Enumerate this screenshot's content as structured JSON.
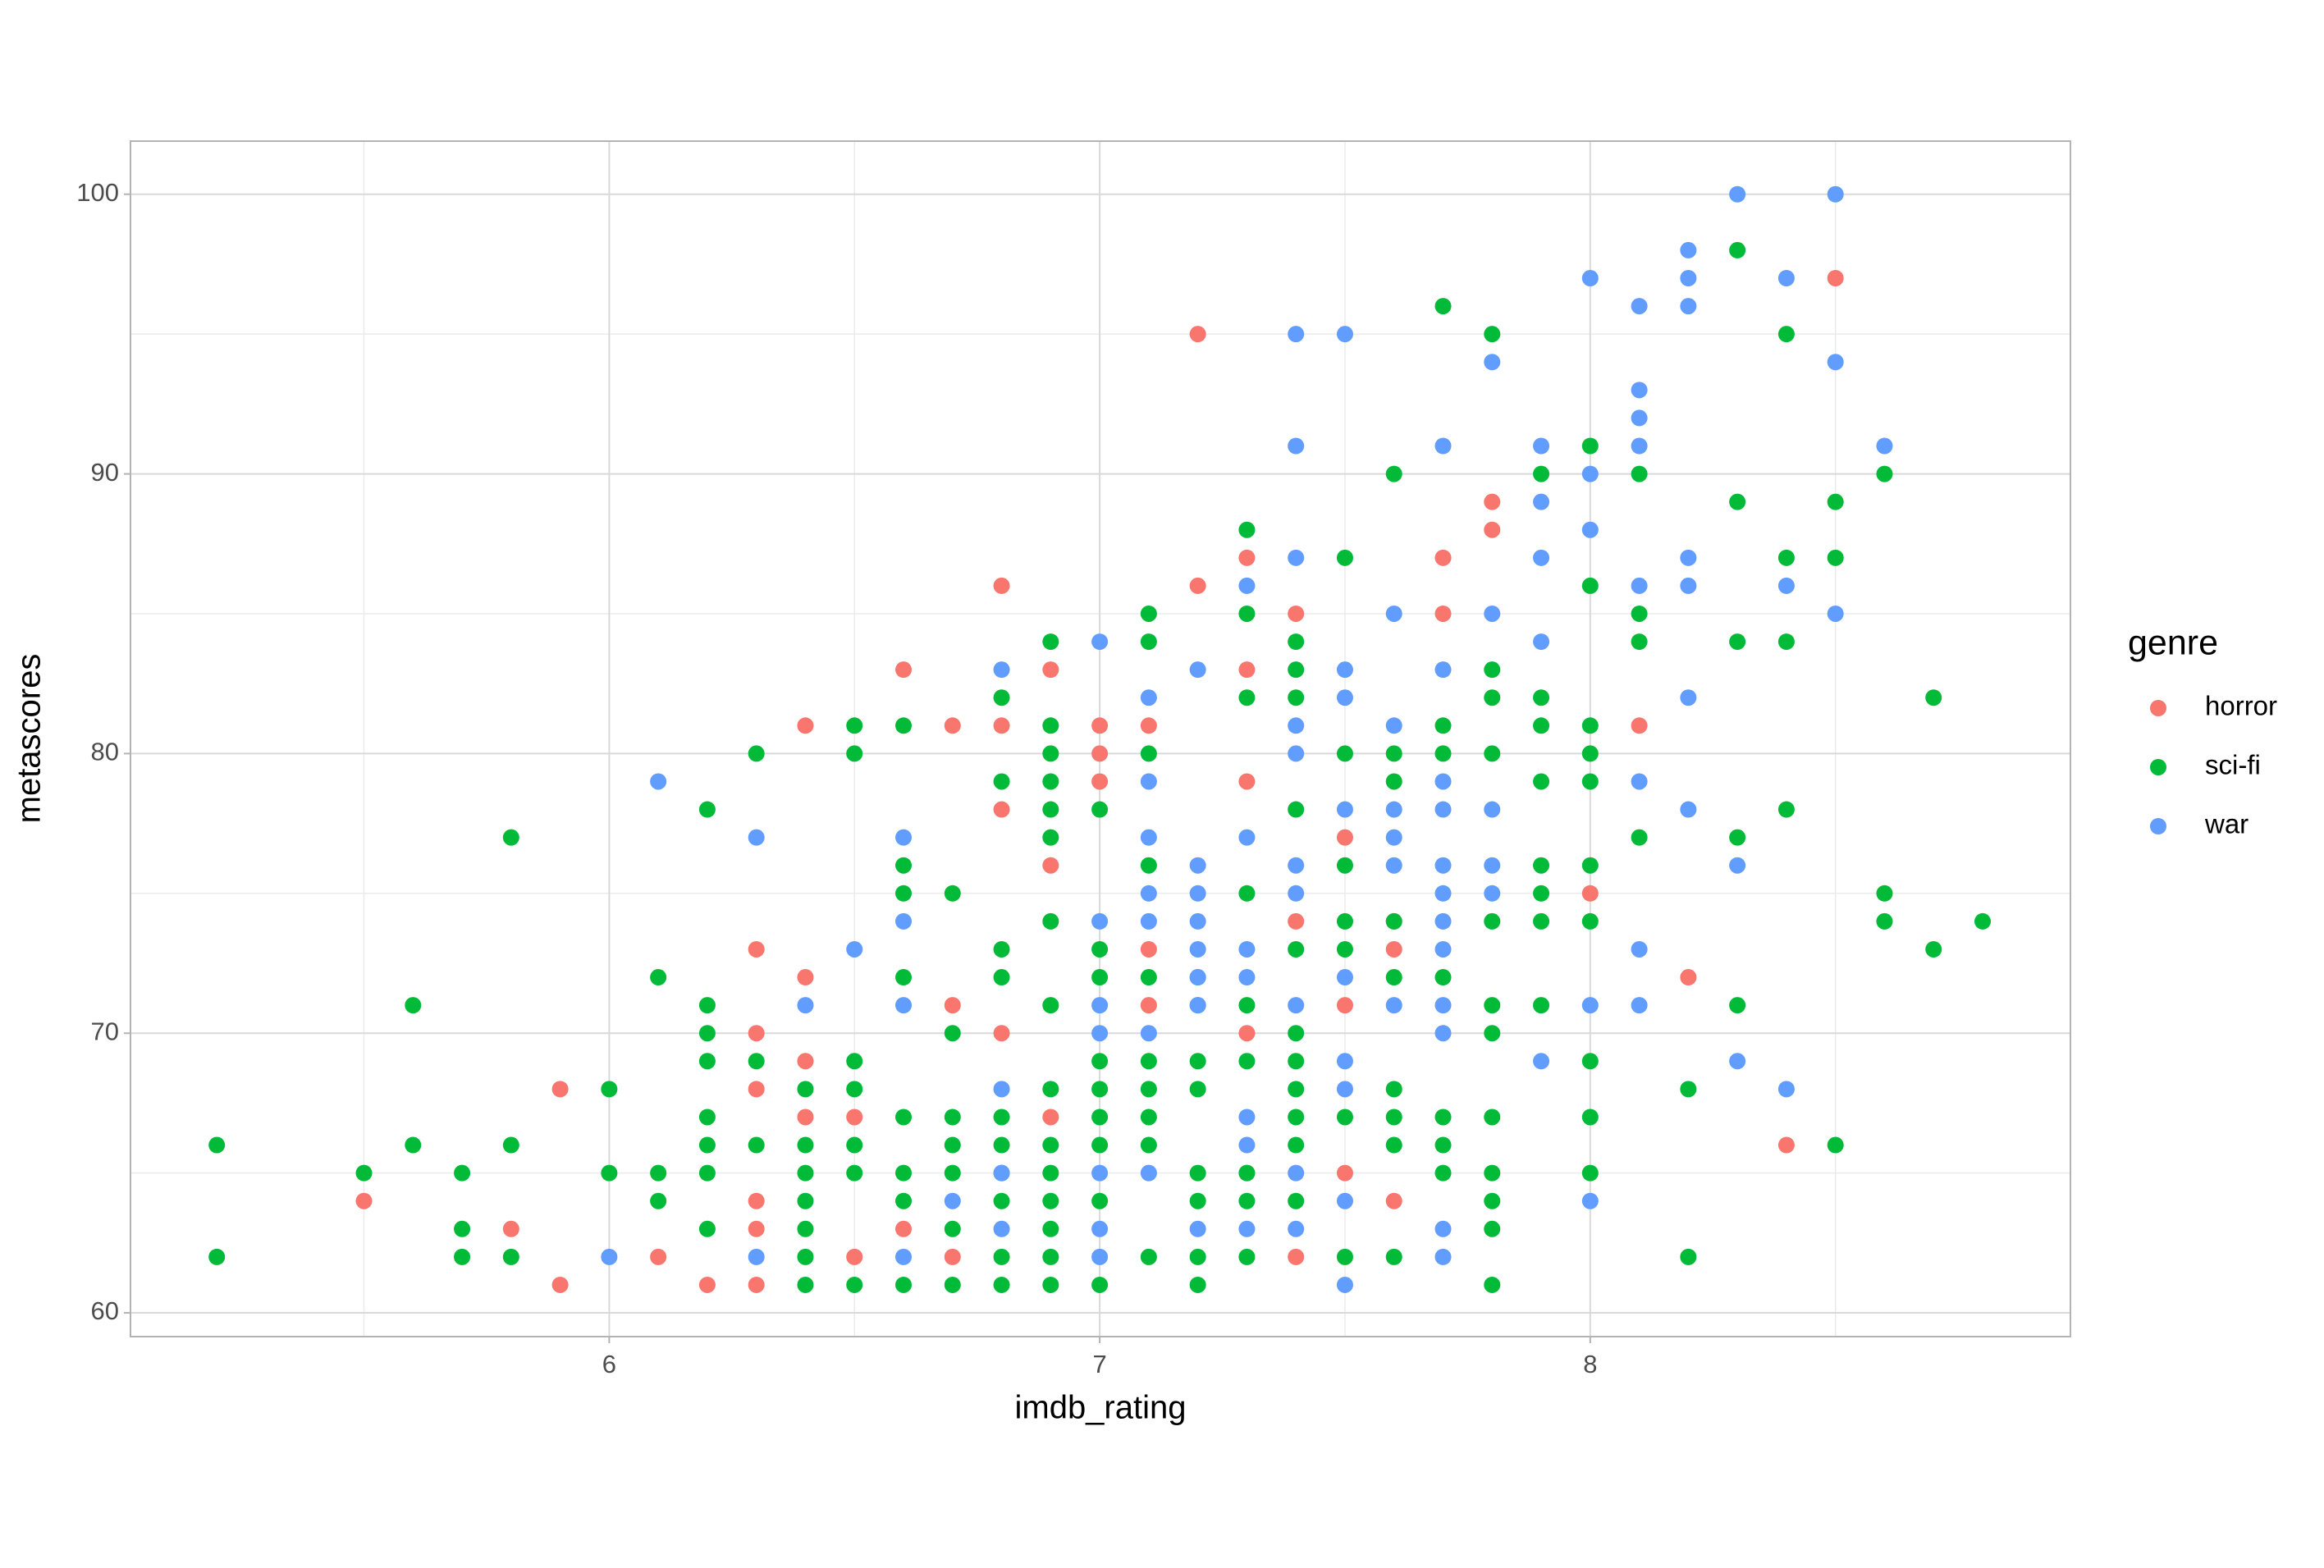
{
  "chart_data": {
    "type": "scatter",
    "x_label": "imdb_rating",
    "y_label": "metascores",
    "legend_title": "genre",
    "xlim": [
      5.024,
      8.979
    ],
    "ylim": [
      59.15,
      101.9
    ],
    "xticks": [
      6,
      7,
      8
    ],
    "yticks": [
      60,
      70,
      80,
      90,
      100
    ],
    "grid": true,
    "legend": "right",
    "series": [
      {
        "name": "horror",
        "color": "#F8766D",
        "x": [
          5.5,
          5.8,
          5.9,
          5.9,
          6.1,
          6.2,
          6.3,
          6.3,
          6.3,
          6.3,
          6.3,
          6.3,
          6.4,
          6.4,
          6.4,
          6.4,
          6.5,
          6.5,
          6.6,
          6.6,
          6.7,
          6.7,
          6.7,
          6.8,
          6.8,
          6.8,
          6.8,
          6.9,
          6.9,
          6.9,
          7,
          7,
          7,
          7.1,
          7.1,
          7.1,
          7.2,
          7.2,
          7.3,
          7.3,
          7.3,
          7.3,
          7.3,
          7.4,
          7.4,
          7.4,
          7.5,
          7.5,
          7.5,
          7.6,
          7.6,
          7.6,
          7.7,
          7.7,
          7.8,
          7.8,
          8,
          8.1,
          8.2,
          8.4,
          8.5
        ],
        "values": [
          64,
          63,
          68,
          61,
          62,
          61,
          73,
          70,
          68,
          64,
          63,
          61,
          81,
          72,
          69,
          67,
          67,
          62,
          83,
          63,
          81,
          71,
          62,
          86,
          81,
          78,
          70,
          83,
          76,
          67,
          81,
          80,
          79,
          81,
          73,
          71,
          95,
          86,
          87,
          83,
          79,
          70,
          65,
          85,
          74,
          62,
          77,
          71,
          65,
          74,
          73,
          64,
          87,
          85,
          89,
          88,
          75,
          81,
          72,
          66,
          97
        ]
      },
      {
        "name": "sci-fi",
        "color": "#00BA38",
        "x": [
          5.2,
          5.2,
          5.5,
          5.6,
          5.6,
          5.7,
          5.7,
          5.7,
          5.8,
          5.8,
          5.8,
          6,
          6,
          6.1,
          6.1,
          6.1,
          6.2,
          6.2,
          6.2,
          6.2,
          6.2,
          6.2,
          6.2,
          6.2,
          6.3,
          6.3,
          6.3,
          6.4,
          6.4,
          6.4,
          6.4,
          6.4,
          6.4,
          6.4,
          6.5,
          6.5,
          6.5,
          6.5,
          6.5,
          6.5,
          6.5,
          6.6,
          6.6,
          6.6,
          6.6,
          6.6,
          6.6,
          6.6,
          6.6,
          6.7,
          6.7,
          6.7,
          6.7,
          6.7,
          6.7,
          6.7,
          6.8,
          6.8,
          6.8,
          6.8,
          6.8,
          6.8,
          6.8,
          6.8,
          6.8,
          6.8,
          6.9,
          6.9,
          6.9,
          6.9,
          6.9,
          6.9,
          6.9,
          6.9,
          6.9,
          6.9,
          6.9,
          6.9,
          6.9,
          6.9,
          6.9,
          7,
          7,
          7,
          7,
          7,
          7,
          7,
          7,
          7,
          7.1,
          7.1,
          7.1,
          7.1,
          7.1,
          7.1,
          7.1,
          7.1,
          7.1,
          7.1,
          7.2,
          7.2,
          7.2,
          7.2,
          7.2,
          7.2,
          7.2,
          7.2,
          7.3,
          7.3,
          7.3,
          7.3,
          7.3,
          7.3,
          7.3,
          7.3,
          7.3,
          7.4,
          7.4,
          7.4,
          7.4,
          7.4,
          7.4,
          7.4,
          7.4,
          7.4,
          7.4,
          7.4,
          7.5,
          7.5,
          7.5,
          7.5,
          7.5,
          7.5,
          7.5,
          7.6,
          7.6,
          7.6,
          7.6,
          7.6,
          7.6,
          7.6,
          7.6,
          7.6,
          7.7,
          7.7,
          7.7,
          7.7,
          7.7,
          7.7,
          7.7,
          7.8,
          7.8,
          7.8,
          7.8,
          7.8,
          7.8,
          7.8,
          7.8,
          7.8,
          7.8,
          7.8,
          7.8,
          7.9,
          7.9,
          7.9,
          7.9,
          7.9,
          7.9,
          7.9,
          7.9,
          8,
          8,
          8,
          8,
          8,
          8,
          8,
          8,
          8,
          8,
          8.1,
          8.1,
          8.1,
          8.1,
          8.2,
          8.2,
          8.3,
          8.3,
          8.3,
          8.3,
          8.3,
          8.4,
          8.4,
          8.4,
          8.4,
          8.5,
          8.5,
          8.5,
          8.6,
          8.6,
          8.6,
          8.7,
          8.7,
          8.8
        ],
        "values": [
          66,
          62,
          65,
          71,
          66,
          65,
          63,
          62,
          77,
          66,
          62,
          68,
          65,
          72,
          65,
          64,
          78,
          71,
          70,
          69,
          67,
          66,
          65,
          63,
          80,
          69,
          66,
          68,
          66,
          65,
          64,
          63,
          62,
          61,
          81,
          80,
          69,
          68,
          66,
          65,
          61,
          81,
          76,
          75,
          72,
          67,
          65,
          64,
          61,
          75,
          70,
          67,
          66,
          65,
          63,
          61,
          82,
          79,
          73,
          72,
          67,
          66,
          65,
          64,
          62,
          61,
          84,
          81,
          80,
          79,
          78,
          77,
          74,
          71,
          68,
          66,
          65,
          64,
          63,
          62,
          61,
          78,
          73,
          72,
          69,
          68,
          67,
          66,
          64,
          61,
          85,
          84,
          80,
          76,
          72,
          69,
          68,
          67,
          66,
          62,
          72,
          71,
          69,
          68,
          65,
          64,
          62,
          61,
          88,
          85,
          82,
          75,
          71,
          69,
          65,
          64,
          62,
          84,
          83,
          82,
          78,
          73,
          70,
          69,
          68,
          67,
          66,
          64,
          87,
          80,
          76,
          74,
          73,
          67,
          62,
          90,
          80,
          79,
          74,
          72,
          68,
          67,
          66,
          62,
          96,
          81,
          80,
          72,
          67,
          66,
          65,
          95,
          83,
          82,
          80,
          74,
          71,
          70,
          67,
          65,
          64,
          63,
          61,
          90,
          82,
          81,
          79,
          76,
          75,
          74,
          71,
          91,
          86,
          81,
          80,
          79,
          76,
          74,
          69,
          67,
          65,
          90,
          85,
          84,
          77,
          68,
          62,
          98,
          89,
          84,
          77,
          71,
          95,
          87,
          84,
          78,
          89,
          87,
          66,
          90,
          75,
          74,
          82,
          73,
          74
        ]
      },
      {
        "name": "war",
        "color": "#619CFF",
        "x": [
          6,
          6.1,
          6.3,
          6.3,
          6.4,
          6.5,
          6.6,
          6.6,
          6.6,
          6.6,
          6.7,
          6.8,
          6.8,
          6.8,
          6.8,
          7,
          7,
          7,
          7,
          7,
          7,
          7,
          7.1,
          7.1,
          7.1,
          7.1,
          7.1,
          7.1,
          7.1,
          7.2,
          7.2,
          7.2,
          7.2,
          7.2,
          7.2,
          7.2,
          7.2,
          7.3,
          7.3,
          7.3,
          7.3,
          7.3,
          7.3,
          7.3,
          7.4,
          7.4,
          7.4,
          7.4,
          7.4,
          7.4,
          7.4,
          7.4,
          7.4,
          7.4,
          7.5,
          7.5,
          7.5,
          7.5,
          7.5,
          7.5,
          7.5,
          7.5,
          7.5,
          7.6,
          7.6,
          7.6,
          7.6,
          7.6,
          7.6,
          7.7,
          7.7,
          7.7,
          7.7,
          7.7,
          7.7,
          7.7,
          7.7,
          7.7,
          7.7,
          7.7,
          7.7,
          7.8,
          7.8,
          7.8,
          7.8,
          7.8,
          7.9,
          7.9,
          7.9,
          7.9,
          7.9,
          8,
          8,
          8,
          8,
          8,
          8.1,
          8.1,
          8.1,
          8.1,
          8.1,
          8.1,
          8.1,
          8.1,
          8.2,
          8.2,
          8.2,
          8.2,
          8.2,
          8.2,
          8.2,
          8.3,
          8.3,
          8.3,
          8.4,
          8.4,
          8.4,
          8.5,
          8.5,
          8.5,
          8.6
        ],
        "values": [
          62,
          79,
          77,
          62,
          71,
          73,
          77,
          74,
          71,
          62,
          64,
          83,
          68,
          65,
          63,
          84,
          74,
          71,
          70,
          65,
          63,
          62,
          82,
          79,
          77,
          75,
          74,
          70,
          65,
          83,
          76,
          75,
          74,
          73,
          72,
          71,
          63,
          86,
          77,
          73,
          72,
          67,
          66,
          63,
          95,
          91,
          87,
          81,
          80,
          76,
          75,
          71,
          65,
          63,
          95,
          83,
          82,
          78,
          72,
          69,
          68,
          64,
          61,
          85,
          81,
          78,
          77,
          76,
          71,
          91,
          83,
          79,
          78,
          76,
          75,
          74,
          73,
          71,
          70,
          63,
          62,
          94,
          85,
          78,
          76,
          75,
          91,
          89,
          87,
          84,
          69,
          97,
          90,
          88,
          71,
          64,
          96,
          93,
          92,
          91,
          86,
          79,
          73,
          71,
          98,
          97,
          96,
          87,
          86,
          82,
          78,
          100,
          76,
          69,
          97,
          86,
          68,
          100,
          94,
          85,
          91
        ]
      }
    ]
  }
}
